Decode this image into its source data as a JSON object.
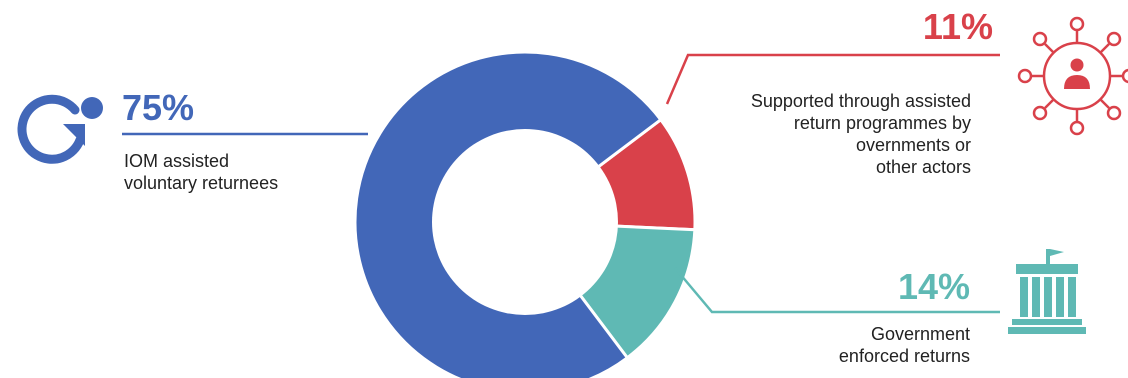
{
  "chart_data": {
    "type": "pie",
    "slices": [
      {
        "id": "iom",
        "percent_label": "75%",
        "value": 75,
        "label_lines": [
          "IOM assisted",
          "voluntary returnees"
        ],
        "color": "#4267b8"
      },
      {
        "id": "supported",
        "percent_label": "11%",
        "value": 11,
        "label_lines": [
          "Supported through assisted",
          "return programmes by",
          "overnments or",
          "other actors"
        ],
        "color": "#d9414a"
      },
      {
        "id": "enforced",
        "percent_label": "14%",
        "value": 14,
        "label_lines": [
          "Government",
          "enforced returns"
        ],
        "color": "#5fb9b4"
      }
    ]
  },
  "icons": {
    "iom": "refresh-person-icon",
    "supported": "network-person-icon",
    "enforced": "government-building-icon"
  }
}
